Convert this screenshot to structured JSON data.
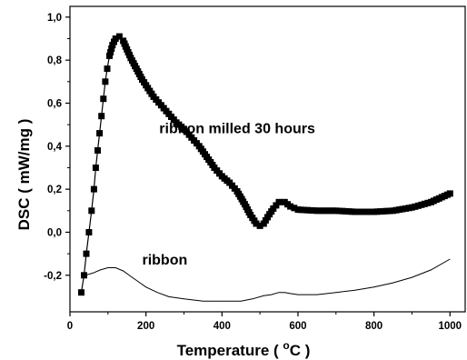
{
  "chart_data": {
    "type": "line",
    "title": "",
    "xlabel": "Temperature ( °C )",
    "xlabel_parts": {
      "pre": "Temperature ( ",
      "sup": "o",
      "post": "C )"
    },
    "ylabel": "DSC ( mW/mg )",
    "xlim": [
      0,
      1040
    ],
    "ylim": [
      -0.37,
      1.05
    ],
    "xticks": [
      0,
      200,
      400,
      600,
      800,
      1000
    ],
    "xtick_labels": [
      "0",
      "200",
      "400",
      "600",
      "800",
      "1000"
    ],
    "yticks": [
      -0.2,
      0.0,
      0.2,
      0.4,
      0.6,
      0.8,
      1.0
    ],
    "ytick_labels": [
      "-0,2",
      "0,0",
      "0,2",
      "0,4",
      "0,6",
      "0,8",
      "1,0"
    ],
    "grid": false,
    "legend": "none",
    "series": [
      {
        "name": "ribbon milled 30 hours",
        "marker": "square",
        "color": "#000000",
        "points": [
          [
            30,
            -0.28
          ],
          [
            37,
            -0.2
          ],
          [
            43,
            -0.1
          ],
          [
            50,
            0.0
          ],
          [
            57,
            0.1
          ],
          [
            63,
            0.2
          ],
          [
            68,
            0.3
          ],
          [
            73,
            0.38
          ],
          [
            78,
            0.46
          ],
          [
            83,
            0.54
          ],
          [
            88,
            0.62
          ],
          [
            93,
            0.7
          ],
          [
            98,
            0.76
          ],
          [
            104,
            0.82
          ],
          [
            112,
            0.87
          ],
          [
            120,
            0.9
          ],
          [
            130,
            0.91
          ],
          [
            140,
            0.89
          ],
          [
            150,
            0.85
          ],
          [
            160,
            0.81
          ],
          [
            175,
            0.76
          ],
          [
            190,
            0.71
          ],
          [
            205,
            0.67
          ],
          [
            220,
            0.63
          ],
          [
            240,
            0.59
          ],
          [
            260,
            0.55
          ],
          [
            280,
            0.51
          ],
          [
            300,
            0.48
          ],
          [
            320,
            0.44
          ],
          [
            340,
            0.4
          ],
          [
            360,
            0.35
          ],
          [
            380,
            0.3
          ],
          [
            400,
            0.26
          ],
          [
            420,
            0.23
          ],
          [
            440,
            0.19
          ],
          [
            460,
            0.13
          ],
          [
            475,
            0.08
          ],
          [
            490,
            0.04
          ],
          [
            500,
            0.03
          ],
          [
            510,
            0.04
          ],
          [
            520,
            0.07
          ],
          [
            535,
            0.11
          ],
          [
            550,
            0.14
          ],
          [
            565,
            0.14
          ],
          [
            580,
            0.12
          ],
          [
            600,
            0.105
          ],
          [
            650,
            0.1
          ],
          [
            700,
            0.1
          ],
          [
            750,
            0.095
          ],
          [
            800,
            0.095
          ],
          [
            850,
            0.1
          ],
          [
            900,
            0.115
          ],
          [
            950,
            0.14
          ],
          [
            1000,
            0.18
          ]
        ]
      },
      {
        "name": "ribbon",
        "marker": "none",
        "color": "#000000",
        "points": [
          [
            40,
            -0.2
          ],
          [
            60,
            -0.19
          ],
          [
            80,
            -0.175
          ],
          [
            100,
            -0.165
          ],
          [
            120,
            -0.165
          ],
          [
            140,
            -0.18
          ],
          [
            160,
            -0.205
          ],
          [
            180,
            -0.23
          ],
          [
            200,
            -0.255
          ],
          [
            230,
            -0.28
          ],
          [
            260,
            -0.3
          ],
          [
            300,
            -0.31
          ],
          [
            350,
            -0.32
          ],
          [
            400,
            -0.32
          ],
          [
            450,
            -0.32
          ],
          [
            480,
            -0.31
          ],
          [
            510,
            -0.295
          ],
          [
            530,
            -0.29
          ],
          [
            550,
            -0.28
          ],
          [
            565,
            -0.28
          ],
          [
            580,
            -0.285
          ],
          [
            600,
            -0.29
          ],
          [
            650,
            -0.29
          ],
          [
            700,
            -0.28
          ],
          [
            750,
            -0.27
          ],
          [
            800,
            -0.255
          ],
          [
            850,
            -0.235
          ],
          [
            900,
            -0.21
          ],
          [
            950,
            -0.175
          ],
          [
            1000,
            -0.125
          ]
        ]
      }
    ],
    "annotations": [
      {
        "text": "ribbon milled 30 hours",
        "x": 235,
        "y": 0.46
      },
      {
        "text": "ribbon",
        "x": 190,
        "y": -0.15
      }
    ]
  }
}
